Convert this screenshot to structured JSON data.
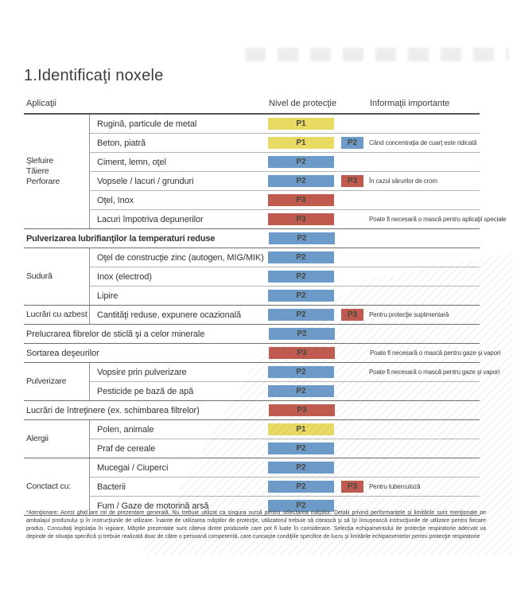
{
  "page": {
    "title": "1.Identificaţi noxele"
  },
  "legend_colors": {
    "P1": "#e9da63",
    "P2": "#6d9bc9",
    "P3": "#c05a4e"
  },
  "table": {
    "headers": {
      "applications": "Aplicaţii",
      "protection": "Nivel de protecţie",
      "info": "Informaţii importante"
    },
    "sections": [
      {
        "group": "Şlefuire\nTăiere\nPerforare",
        "rows": [
          {
            "label": "Rugină, particule de metal",
            "level": "P1"
          },
          {
            "label": "Beton, piatră",
            "level": "P1",
            "badge": "P2",
            "note": "Când concentraţia de cuarţ este ridicată"
          },
          {
            "label": "Ciment, lemn, oţel",
            "level": "P2"
          },
          {
            "label": "Vopsele / lacuri / grunduri",
            "level": "P2",
            "badge": "P3",
            "note": "În cazul sărurilor de crom"
          },
          {
            "label": "Oţel, Inox",
            "level": "P3"
          },
          {
            "label": "Lacuri împotriva depunerilor",
            "level": "P3",
            "note": "Poate fi necesară o mască pentru aplicaţii speciale"
          }
        ]
      },
      {
        "group": null,
        "rows": [
          {
            "label": "Pulverizarea lubrifianţilor la temperaturi reduse",
            "level": "P2",
            "bold": true
          }
        ]
      },
      {
        "group": "Sudură",
        "rows": [
          {
            "label": "Oţel de construcţie zinc (autogen, MIG/MIK)",
            "level": "P2"
          },
          {
            "label": "Inox (electrod)",
            "level": "P2"
          },
          {
            "label": "Lipire",
            "level": "P2"
          }
        ]
      },
      {
        "group": "Lucrări cu azbest",
        "rows": [
          {
            "label": "Cantităţi reduse, expunere ocazională",
            "level": "P2",
            "badge": "P3",
            "note": "Pentru protecţie suplimentară"
          }
        ]
      },
      {
        "group": null,
        "rows": [
          {
            "label": "Prelucrarea fibrelor de sticlă şi a celor minerale",
            "level": "P2"
          }
        ]
      },
      {
        "group": null,
        "rows": [
          {
            "label": "Sortarea deşeurilor",
            "level": "P3",
            "note": "Poate fi necesară o mască pentru gaze şi vapori"
          }
        ]
      },
      {
        "group": "Pulverizare",
        "rows": [
          {
            "label": "Vopsire prin pulverizare",
            "level": "P2",
            "note": "Poate fi necesară o mască pentru gaze şi vapori"
          },
          {
            "label": "Pesticide pe bază de apă",
            "level": "P2"
          }
        ]
      },
      {
        "group": null,
        "rows": [
          {
            "label": "Lucrări de întreţinere (ex. schimbarea filtrelor)",
            "level": "P3"
          }
        ]
      },
      {
        "group": "Alergii",
        "rows": [
          {
            "label": "Polen, animale",
            "level": "P1"
          },
          {
            "label": "Praf de cereale",
            "level": "P2"
          }
        ]
      },
      {
        "group": "Conctact cu:",
        "rows": [
          {
            "label": "Mucegai / Ciuperci",
            "level": "P2"
          },
          {
            "label": "Bacterii",
            "level": "P2",
            "badge": "P3",
            "note": "Pentru tuberculoză"
          },
          {
            "label": "Fum / Gaze de motorină arsă",
            "level": "P2"
          }
        ]
      }
    ]
  },
  "footnote": {
    "text": "*Atenţionare: Acest ghid are rol de prezentare generală. Nu trebuie utilizat ca singura sursă pentru selectarea măştilor. Detalii privind performanţele şi limitările sunt menţionate pe ambalajul produsului şi în instrucţiunile de utilizare. Înainte de utilizarea măştilor de protecţie, utilizatorul trebuie să citească şi să îşi însuşească instrucţiunile de utilizare pentru fiecare produs. Consultaţi legislaţia în vigoare. Măştile prezentate sunt câteva dintre produsele care pot fi luate în considerare. Selecţia echipamentului de protecţie respiratorie adecvat va depinde de situaţia specifică şi trebuie realizată doar de către o persoană competentă, care cunoaşte condiţiile specifice de lucru şi limitările echipamentelor pentru protecţie respiratorie"
  }
}
